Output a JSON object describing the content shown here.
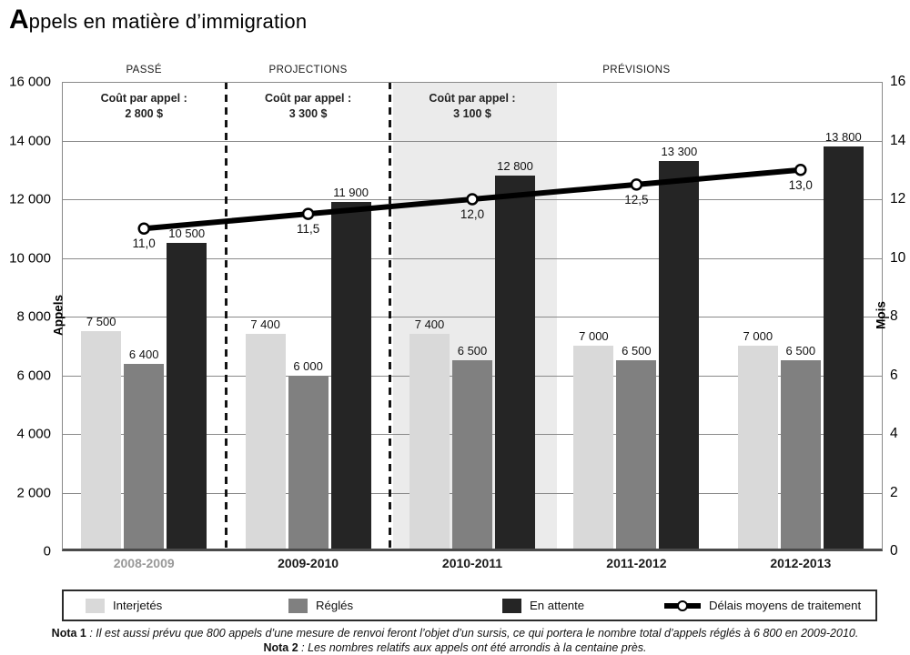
{
  "title": {
    "initial": "A",
    "rest": "ppels en matière d’immigration"
  },
  "sections": [
    {
      "label": "PASSÉ",
      "span": [
        0,
        0
      ]
    },
    {
      "label": "PROJECTIONS",
      "span": [
        1,
        1
      ]
    },
    {
      "label": "PRÉVISIONS",
      "span": [
        2,
        4
      ]
    }
  ],
  "chart_data": {
    "type": "bar",
    "categories": [
      "2008-2009",
      "2009-2010",
      "2010-2011",
      "2011-2012",
      "2012-2013"
    ],
    "series": [
      {
        "name": "Interjetés",
        "color": "#d9d9d9",
        "values": [
          7500,
          7400,
          7400,
          7000,
          7000
        ],
        "labels": [
          "7 500",
          "7 400",
          "7 400",
          "7 000",
          "7 000"
        ]
      },
      {
        "name": "Réglés",
        "color": "#808080",
        "values": [
          6400,
          6000,
          6500,
          6500,
          6500
        ],
        "labels": [
          "6 400",
          "6 000",
          "6 500",
          "6 500",
          "6 500"
        ]
      },
      {
        "name": "En attente",
        "color": "#252525",
        "values": [
          10500,
          11900,
          12800,
          13300,
          13800
        ],
        "labels": [
          "10 500",
          "11 900",
          "12 800",
          "13 300",
          "13 800"
        ]
      }
    ],
    "line_series": {
      "name": "Délais moyens de traitement",
      "axis": "right",
      "color": "#000000",
      "marker": "open-circle",
      "values": [
        11.0,
        11.5,
        12.0,
        12.5,
        13.0
      ],
      "labels": [
        "11,0",
        "11,5",
        "12,0",
        "12,5",
        "13,0"
      ]
    },
    "left_axis": {
      "label": "Appels",
      "min": 0,
      "max": 16000,
      "step": 2000,
      "tick_labels": [
        "0",
        "2 000",
        "4 000",
        "6 000",
        "8 000",
        "10 000",
        "12 000",
        "14 000",
        "16 000"
      ]
    },
    "right_axis": {
      "label": "Mois",
      "min": 0,
      "max": 16,
      "step": 2,
      "tick_labels": [
        "0",
        "2",
        "4",
        "6",
        "8",
        "10",
        "12",
        "14",
        "16"
      ]
    },
    "annotations": [
      {
        "category_index": 0,
        "lines": [
          "Coût par appel :",
          "2 800 $"
        ]
      },
      {
        "category_index": 1,
        "lines": [
          "Coût par appel :",
          "3 300 $"
        ]
      },
      {
        "category_index": 2,
        "lines": [
          "Coût par appel :",
          "3 100 $"
        ]
      }
    ],
    "highlight": {
      "category_index": 2,
      "color": "#ebebeb"
    },
    "muted_category_index": 0,
    "muted_category_color": "#999999",
    "grid": true,
    "legend_position": "bottom"
  },
  "notes": [
    {
      "label": "Nota 1",
      "text": " : Il est aussi prévu que 800 appels d’une mesure de renvoi feront l’objet d’un sursis, ce qui portera le nombre total d’appels réglés à 6 800 en 2009-2010."
    },
    {
      "label": "Nota 2",
      "text": " : Les nombres relatifs aux appels ont été arrondis à la centaine près."
    }
  ]
}
